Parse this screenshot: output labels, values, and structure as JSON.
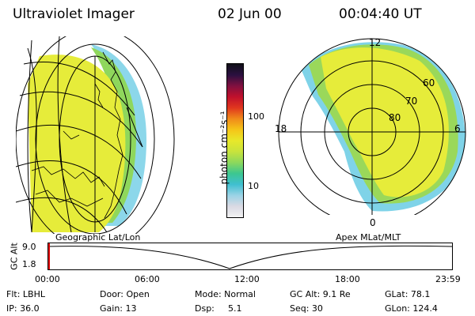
{
  "header": {
    "instrument": "Ultraviolet Imager",
    "date": "02 Jun 00",
    "time": "00:04:40 UT"
  },
  "colorbar": {
    "unit_label": "photon cm⁻²s⁻¹",
    "tick_100": "100",
    "tick_10": "10",
    "colors": [
      "#f2f2f2",
      "#d9d9e3",
      "#9ad3e6",
      "#3fbfd0",
      "#3cc790",
      "#8dd85c",
      "#c8e33c",
      "#e8e82a",
      "#f5c518",
      "#f08a1a",
      "#e0361e",
      "#c0102c",
      "#801040",
      "#2a1040",
      "#101018"
    ]
  },
  "left_panel": {
    "projection_label": "Geographic Lat/Lon",
    "fill_color": "#e6ec3a"
  },
  "right_panel": {
    "projection_label": "Apex MLat/MLT",
    "mlt_12": "12",
    "mlt_18": "18",
    "mlt_6": "6",
    "mlt_0": "0",
    "lat_60": "60",
    "lat_70": "70",
    "lat_80": "80"
  },
  "timeline": {
    "axis_title": "GC Alt",
    "ytick_top": "9.0",
    "ytick_bottom": "1.8",
    "xticks": [
      "00:00",
      "06:00",
      "12:00",
      "18:00",
      "23:59"
    ]
  },
  "footer": {
    "filter": "Flt: LBHL",
    "door": "Door: Open",
    "mode": "Mode: Normal",
    "gc_alt": "GC Alt: 9.1 Re",
    "glat": "GLat:  78.1",
    "ip": "IP: 36.0",
    "gain": "Gain: 13",
    "dsp_label": "Dsp:",
    "dsp_value": "5.1",
    "seq": "Seq: 30",
    "glon": "GLon: 124.4"
  }
}
